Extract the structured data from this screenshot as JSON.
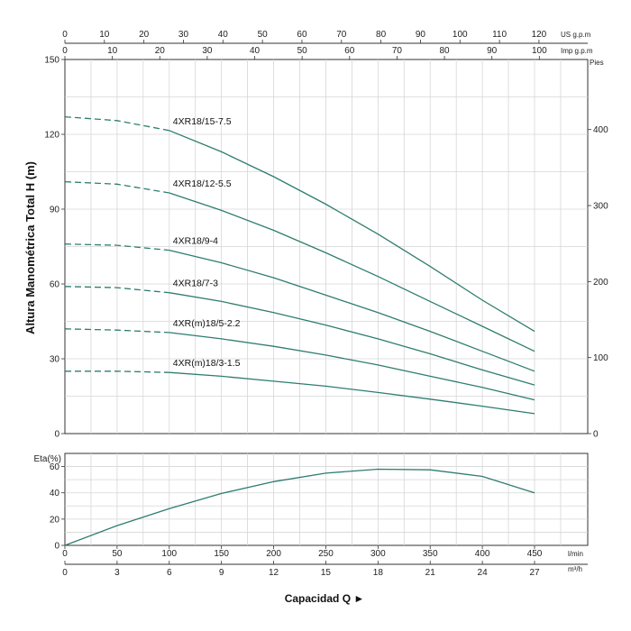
{
  "chart_data": [
    {
      "type": "line",
      "panel": "head",
      "ylabel": "Altura Manométrica Total H (m)",
      "ylim": [
        0,
        150
      ],
      "yticks": [
        "0",
        "30",
        "60",
        "90",
        "120",
        "150"
      ],
      "right_axis": {
        "unit": "Pies",
        "ticks": [
          "0",
          "100",
          "200",
          "300",
          "400"
        ]
      },
      "top_axis_us": {
        "unit": "US g.p.m",
        "ticks": [
          "0",
          "10",
          "20",
          "30",
          "40",
          "50",
          "60",
          "70",
          "80",
          "90",
          "100",
          "110",
          "120"
        ]
      },
      "top_axis_imp": {
        "unit": "Imp g.p.m",
        "ticks": [
          "0",
          "10",
          "20",
          "30",
          "40",
          "50",
          "60",
          "70",
          "80",
          "90",
          "100"
        ]
      },
      "xlim": [
        0,
        450
      ],
      "grid": true,
      "series": [
        {
          "name": "4XR18/15-7.5",
          "x": [
            0,
            50,
            100,
            150,
            200,
            250,
            300,
            350,
            400,
            450
          ],
          "y": [
            127,
            125.5,
            121.5,
            113,
            103,
            92,
            80,
            67,
            53.5,
            41
          ],
          "dashed_until": 100
        },
        {
          "name": "4XR18/12-5.5",
          "x": [
            0,
            50,
            100,
            150,
            200,
            250,
            300,
            350,
            400,
            450
          ],
          "y": [
            101,
            100,
            96.5,
            89.5,
            81.5,
            72.5,
            63,
            53,
            43,
            33
          ],
          "dashed_until": 100
        },
        {
          "name": "4XR18/9-4",
          "x": [
            0,
            50,
            100,
            150,
            200,
            250,
            300,
            350,
            400,
            450
          ],
          "y": [
            76,
            75.5,
            73.5,
            68.5,
            62.5,
            55.5,
            48.5,
            41,
            33,
            25
          ],
          "dashed_until": 100
        },
        {
          "name": "4XR18/7-3",
          "x": [
            0,
            50,
            100,
            150,
            200,
            250,
            300,
            350,
            400,
            450
          ],
          "y": [
            59,
            58.5,
            56.5,
            53,
            48.5,
            43.5,
            38,
            32,
            25.5,
            19.5
          ],
          "dashed_until": 100
        },
        {
          "name": "4XR(m)18/5-2.2",
          "x": [
            0,
            50,
            100,
            150,
            200,
            250,
            300,
            350,
            400,
            450
          ],
          "y": [
            42,
            41.5,
            40.5,
            38,
            35,
            31.5,
            27.5,
            23,
            18.5,
            13.5
          ],
          "dashed_until": 100
        },
        {
          "name": "4XR(m)18/3-1.5",
          "x": [
            0,
            50,
            100,
            150,
            200,
            250,
            300,
            350,
            400,
            450
          ],
          "y": [
            25,
            25,
            24.5,
            23,
            21,
            19,
            16.5,
            13.8,
            11,
            8
          ],
          "dashed_until": 100
        }
      ]
    },
    {
      "type": "line",
      "panel": "efficiency",
      "ylabel": "Eta(%)",
      "ylim": [
        0,
        70
      ],
      "yticks": [
        "0",
        "20",
        "40",
        "60"
      ],
      "xlim": [
        0,
        450
      ],
      "x_ticks": [
        "0",
        "50",
        "100",
        "150",
        "200",
        "250",
        "300",
        "350",
        "400",
        "450"
      ],
      "x_unit": "l/min",
      "x2_ticks": [
        "0",
        "3",
        "6",
        "9",
        "12",
        "15",
        "18",
        "21",
        "24",
        "27"
      ],
      "x2_unit": "m³/h",
      "grid": true,
      "series": [
        {
          "x": [
            0,
            50,
            100,
            150,
            200,
            250,
            300,
            350,
            400,
            450
          ],
          "y": [
            0,
            15,
            28,
            39.5,
            48.5,
            55,
            58,
            57.5,
            52.5,
            40
          ]
        }
      ]
    }
  ],
  "xlabel": "Capacidad Q ►"
}
